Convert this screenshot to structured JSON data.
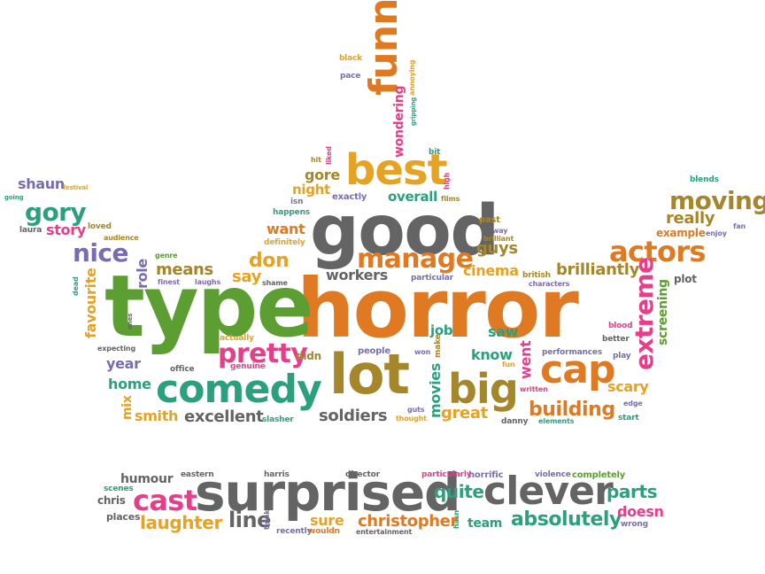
{
  "palette": {
    "green": "#5c9e32",
    "orange": "#e07a22",
    "gray": "#646464",
    "teal": "#2aa07c",
    "olive": "#a5862a",
    "purple": "#7a6cb0",
    "pink": "#e63e8a",
    "gold": "#e6a223"
  },
  "words": [
    {
      "text": "horror",
      "color": "orange"
    },
    {
      "text": "type",
      "color": "green"
    },
    {
      "text": "good",
      "color": "gray"
    },
    {
      "text": "comedy",
      "color": "teal"
    },
    {
      "text": "lot",
      "color": "olive"
    },
    {
      "text": "big",
      "color": "olive"
    },
    {
      "text": "cap",
      "color": "orange"
    },
    {
      "text": "surprised",
      "color": "gray"
    },
    {
      "text": "clever",
      "color": "gray"
    },
    {
      "text": "best",
      "color": "gold"
    },
    {
      "text": "funny",
      "color": "orange"
    },
    {
      "text": "pretty",
      "color": "pink"
    },
    {
      "text": "manage",
      "color": "orange"
    },
    {
      "text": "actors",
      "color": "orange"
    },
    {
      "text": "moving",
      "color": "olive"
    },
    {
      "text": "extreme",
      "color": "pink"
    },
    {
      "text": "cast",
      "color": "pink"
    },
    {
      "text": "gory",
      "color": "teal"
    },
    {
      "text": "nice",
      "color": "purple"
    },
    {
      "text": "building",
      "color": "orange"
    },
    {
      "text": "absolutely",
      "color": "teal"
    },
    {
      "text": "laughter",
      "color": "gold"
    },
    {
      "text": "christopher",
      "color": "orange"
    },
    {
      "text": "quite",
      "color": "teal"
    },
    {
      "text": "parts",
      "color": "teal"
    },
    {
      "text": "line",
      "color": "gray"
    },
    {
      "text": "doesn",
      "color": "pink"
    },
    {
      "text": "brilliantly",
      "color": "olive"
    },
    {
      "text": "excellent",
      "color": "gray"
    },
    {
      "text": "soldiers",
      "color": "gray"
    },
    {
      "text": "workers",
      "color": "gray"
    },
    {
      "text": "great",
      "color": "gold"
    },
    {
      "text": "movies",
      "color": "teal"
    },
    {
      "text": "know",
      "color": "teal"
    },
    {
      "text": "went",
      "color": "pink"
    },
    {
      "text": "scary",
      "color": "gold"
    },
    {
      "text": "cinema",
      "color": "gold"
    },
    {
      "text": "guys",
      "color": "olive"
    },
    {
      "text": "saw",
      "color": "teal"
    },
    {
      "text": "job",
      "color": "teal"
    },
    {
      "text": "don",
      "color": "gold"
    },
    {
      "text": "say",
      "color": "gold"
    },
    {
      "text": "want",
      "color": "orange"
    },
    {
      "text": "means",
      "color": "olive"
    },
    {
      "text": "role",
      "color": "purple"
    },
    {
      "text": "favourite",
      "color": "gold"
    },
    {
      "text": "year",
      "color": "purple"
    },
    {
      "text": "home",
      "color": "teal"
    },
    {
      "text": "smith",
      "color": "gold"
    },
    {
      "text": "mix",
      "color": "gold"
    },
    {
      "text": "story",
      "color": "pink"
    },
    {
      "text": "shaun",
      "color": "purple"
    },
    {
      "text": "gore",
      "color": "olive"
    },
    {
      "text": "night",
      "color": "gold"
    },
    {
      "text": "overall",
      "color": "teal"
    },
    {
      "text": "wondering",
      "color": "pink"
    },
    {
      "text": "really",
      "color": "olive"
    },
    {
      "text": "example",
      "color": "orange"
    },
    {
      "text": "screening",
      "color": "green"
    },
    {
      "text": "plot",
      "color": "gray"
    },
    {
      "text": "sure",
      "color": "gold"
    },
    {
      "text": "team",
      "color": "teal"
    },
    {
      "text": "humour",
      "color": "gray"
    },
    {
      "text": "chris",
      "color": "gray"
    },
    {
      "text": "places",
      "color": "gray"
    },
    {
      "text": "horrific",
      "color": "purple"
    },
    {
      "text": "particularly",
      "color": "pink"
    },
    {
      "text": "director",
      "color": "gray"
    },
    {
      "text": "harris",
      "color": "gray"
    },
    {
      "text": "eastern",
      "color": "gray"
    },
    {
      "text": "scenes",
      "color": "teal"
    },
    {
      "text": "violence",
      "color": "purple"
    },
    {
      "text": "completely",
      "color": "green"
    },
    {
      "text": "wrong",
      "color": "purple"
    },
    {
      "text": "entertainment",
      "color": "gray"
    },
    {
      "text": "recently",
      "color": "purple"
    },
    {
      "text": "wouldn",
      "color": "orange"
    },
    {
      "text": "think",
      "color": "purple"
    },
    {
      "text": "hasn",
      "color": "teal"
    },
    {
      "text": "black",
      "color": "gold"
    },
    {
      "text": "pace",
      "color": "purple"
    },
    {
      "text": "annoying",
      "color": "gold"
    },
    {
      "text": "gripping",
      "color": "teal"
    },
    {
      "text": "bit",
      "color": "teal"
    },
    {
      "text": "hit",
      "color": "olive"
    },
    {
      "text": "liked",
      "color": "pink"
    },
    {
      "text": "high",
      "color": "pink"
    },
    {
      "text": "films",
      "color": "olive"
    },
    {
      "text": "exactly",
      "color": "purple"
    },
    {
      "text": "isn",
      "color": "purple"
    },
    {
      "text": "happens",
      "color": "teal"
    },
    {
      "text": "definitely",
      "color": "gold"
    },
    {
      "text": "past",
      "color": "olive"
    },
    {
      "text": "way",
      "color": "purple"
    },
    {
      "text": "brilliant",
      "color": "olive"
    },
    {
      "text": "blends",
      "color": "teal"
    },
    {
      "text": "fan",
      "color": "purple"
    },
    {
      "text": "enjoy",
      "color": "purple"
    },
    {
      "text": "festival",
      "color": "gold"
    },
    {
      "text": "going",
      "color": "teal"
    },
    {
      "text": "laura",
      "color": "gray"
    },
    {
      "text": "loved",
      "color": "olive"
    },
    {
      "text": "audience",
      "color": "olive"
    },
    {
      "text": "genre",
      "color": "green"
    },
    {
      "text": "finest",
      "color": "purple"
    },
    {
      "text": "laughs",
      "color": "purple"
    },
    {
      "text": "shame",
      "color": "gray"
    },
    {
      "text": "particular",
      "color": "purple"
    },
    {
      "text": "british",
      "color": "olive"
    },
    {
      "text": "characters",
      "color": "purple"
    },
    {
      "text": "performances",
      "color": "purple"
    },
    {
      "text": "dead",
      "color": "teal"
    },
    {
      "text": "ones",
      "color": "gray"
    },
    {
      "text": "expecting",
      "color": "gray"
    },
    {
      "text": "actually",
      "color": "gold"
    },
    {
      "text": "genuine",
      "color": "pink"
    },
    {
      "text": "office",
      "color": "gray"
    },
    {
      "text": "didn",
      "color": "olive"
    },
    {
      "text": "people",
      "color": "purple"
    },
    {
      "text": "won",
      "color": "purple"
    },
    {
      "text": "make",
      "color": "olive"
    },
    {
      "text": "fun",
      "color": "gold"
    },
    {
      "text": "written",
      "color": "pink"
    },
    {
      "text": "elements",
      "color": "teal"
    },
    {
      "text": "danny",
      "color": "gray"
    },
    {
      "text": "guts",
      "color": "purple"
    },
    {
      "text": "thought",
      "color": "gold"
    },
    {
      "text": "slasher",
      "color": "teal"
    },
    {
      "text": "blood",
      "color": "pink"
    },
    {
      "text": "better",
      "color": "gray"
    },
    {
      "text": "play",
      "color": "purple"
    },
    {
      "text": "edge",
      "color": "purple"
    },
    {
      "text": "start",
      "color": "teal"
    }
  ]
}
